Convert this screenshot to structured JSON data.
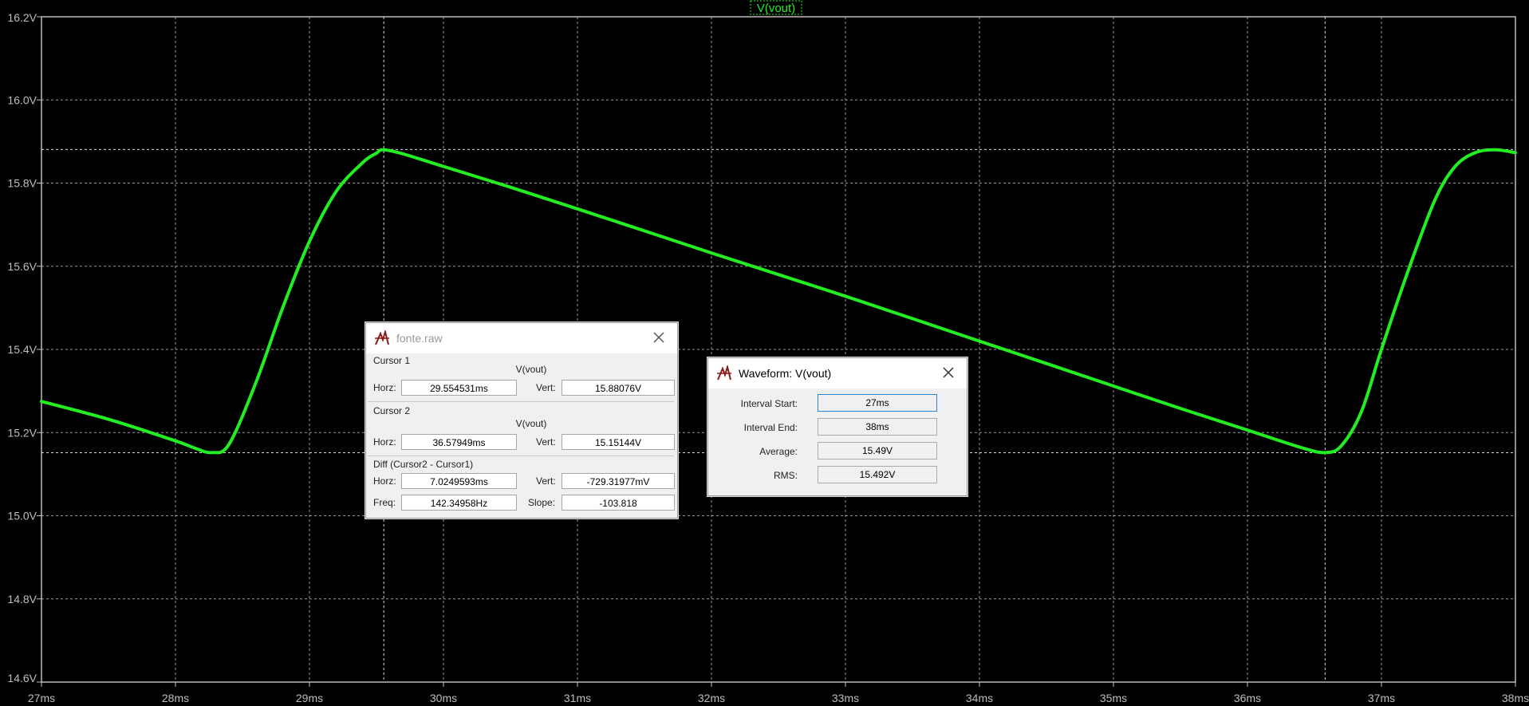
{
  "plot": {
    "trace_label": "V(vout)",
    "trace_color": "#22ee22",
    "background": "#000000",
    "grid_color": "#9a9a9a",
    "axis_color": "#bdbdbd",
    "label_color": "#bdbdbd"
  },
  "chart_data": {
    "type": "line",
    "title": "",
    "xlabel": "",
    "ylabel": "",
    "xlim": [
      27,
      38
    ],
    "ylim": [
      14.6,
      16.2
    ],
    "x_unit": "ms",
    "x_ticks": [
      "27ms",
      "28ms",
      "29ms",
      "30ms",
      "31ms",
      "32ms",
      "33ms",
      "34ms",
      "35ms",
      "36ms",
      "37ms",
      "38ms"
    ],
    "y_ticks": [
      "16.2V",
      "16.0V",
      "15.8V",
      "15.6V",
      "15.4V",
      "15.2V",
      "15.0V",
      "14.8V",
      "14.6V"
    ],
    "grid": true,
    "series": [
      {
        "name": "V(vout)",
        "x": [
          27.0,
          27.5,
          28.0,
          28.15,
          28.27,
          28.4,
          28.6,
          28.8,
          29.0,
          29.2,
          29.4,
          29.5,
          29.55,
          29.7,
          30.0,
          30.5,
          31.0,
          31.5,
          32.0,
          32.5,
          33.0,
          33.5,
          34.0,
          34.5,
          35.0,
          35.5,
          36.0,
          36.4,
          36.58,
          36.7,
          36.85,
          37.0,
          37.2,
          37.4,
          37.55,
          37.7,
          37.85,
          38.0
        ],
        "y": [
          15.275,
          15.232,
          15.18,
          15.162,
          15.152,
          15.172,
          15.32,
          15.5,
          15.66,
          15.78,
          15.85,
          15.872,
          15.88,
          15.87,
          15.84,
          15.79,
          15.738,
          15.685,
          15.632,
          15.58,
          15.528,
          15.474,
          15.42,
          15.366,
          15.312,
          15.258,
          15.206,
          15.164,
          15.152,
          15.168,
          15.25,
          15.4,
          15.59,
          15.76,
          15.84,
          15.873,
          15.88,
          15.873
        ]
      }
    ],
    "cursors": [
      {
        "x": 29.554531,
        "y": 15.88076
      },
      {
        "x": 36.57949,
        "y": 15.15144
      }
    ]
  },
  "cursor_dialog": {
    "title": "fonte.raw",
    "cursor1": {
      "label": "Cursor 1",
      "signal": "V(vout)",
      "horz_label": "Horz:",
      "horz_value": "29.554531ms",
      "vert_label": "Vert:",
      "vert_value": "15.88076V"
    },
    "cursor2": {
      "label": "Cursor 2",
      "signal": "V(vout)",
      "horz_label": "Horz:",
      "horz_value": "36.57949ms",
      "vert_label": "Vert:",
      "vert_value": "15.15144V"
    },
    "diff": {
      "label": "Diff (Cursor2 - Cursor1)",
      "horz_label": "Horz:",
      "horz_value": "7.0249593ms",
      "vert_label": "Vert:",
      "vert_value": "-729.31977mV",
      "freq_label": "Freq:",
      "freq_value": "142.34958Hz",
      "slope_label": "Slope:",
      "slope_value": "-103.818"
    }
  },
  "waveform_dialog": {
    "title": "Waveform: V(vout)",
    "rows": [
      {
        "label": "Interval Start:",
        "value": "27ms"
      },
      {
        "label": "Interval End:",
        "value": "38ms"
      },
      {
        "label": "Average:",
        "value": "15.49V"
      },
      {
        "label": "RMS:",
        "value": "15.492V"
      }
    ]
  }
}
